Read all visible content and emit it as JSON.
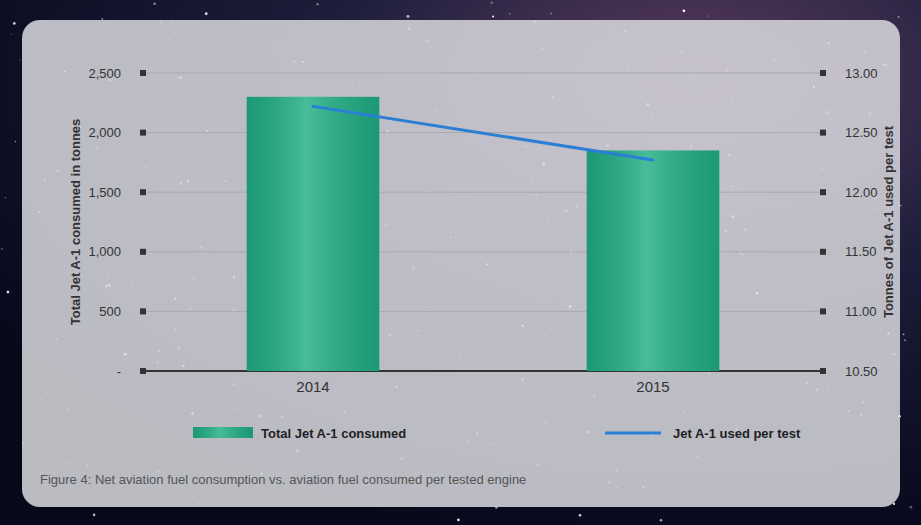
{
  "chart_data": {
    "type": "bar",
    "caption": "Figure 4: Net aviation fuel consumption vs. aviation fuel consumed per tested engine",
    "y_label": "Total Jet A-1 consumed in tonnes",
    "y2_label": "Tonnes of Jet A-1 used per test",
    "categories": [
      "2014",
      "2015"
    ],
    "series": [
      {
        "name": "Total Jet A-1 consumed",
        "type": "bar",
        "color": "#1fae84",
        "values": [
          2300,
          1850
        ]
      },
      {
        "name": "Jet A-1 used per test",
        "type": "line",
        "axis": "y2",
        "color": "#2a7fd4",
        "values": [
          12.72,
          12.27
        ]
      }
    ],
    "ylim": [
      0,
      2500
    ],
    "yticks": [
      {
        "value": 0,
        "label": "-"
      },
      500,
      {
        "value": 1000,
        "label": "1,000"
      },
      {
        "value": 1500,
        "label": "1,500"
      },
      {
        "value": 2000,
        "label": "2,000"
      },
      {
        "value": 2500,
        "label": "2,500"
      }
    ],
    "y2lim": [
      10.5,
      13
    ],
    "y2ticks": [
      {
        "value": 10.5,
        "label": "10.50"
      },
      {
        "value": 11,
        "label": "11.00"
      },
      {
        "value": 11.5,
        "label": "11.50"
      },
      {
        "value": 12,
        "label": "12.00"
      },
      {
        "value": 12.5,
        "label": "12.50"
      },
      {
        "value": 13,
        "label": "13.00"
      }
    ],
    "grid": true,
    "legend": "bottom"
  }
}
